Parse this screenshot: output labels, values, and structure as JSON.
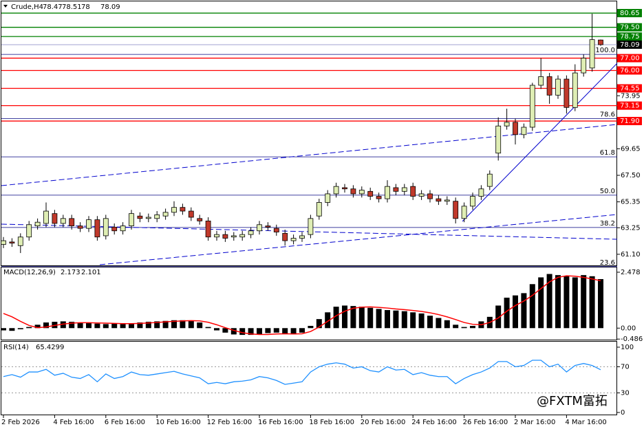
{
  "header": {
    "symbol": "Crude,H4"
  },
  "watermark": "@FXTM富拓",
  "chart_data": [
    {
      "type": "candlestick",
      "categories": [
        "2 Feb 2026",
        null,
        null,
        null,
        null,
        null,
        "4 Feb 16:00",
        null,
        null,
        null,
        null,
        null,
        "6 Feb 16:00",
        null,
        null,
        null,
        null,
        null,
        "10 Feb 16:00",
        null,
        null,
        null,
        null,
        null,
        "12 Feb 16:00",
        null,
        null,
        null,
        null,
        null,
        "16 Feb 16:00",
        null,
        null,
        null,
        null,
        null,
        "18 Feb 16:00",
        null,
        null,
        null,
        null,
        null,
        "20 Feb 16:00",
        null,
        null,
        null,
        null,
        null,
        "24 Feb 16:00",
        null,
        null,
        null,
        null,
        null,
        "26 Feb 16:00",
        null,
        null,
        null,
        null,
        null,
        "2 Mar 16:00",
        null,
        null,
        null,
        null,
        null,
        "4 Mar 16:00",
        null,
        null,
        null,
        null
      ],
      "open": [
        61.9,
        62.1,
        61.8,
        62.5,
        63.4,
        63.6,
        64.4,
        63.6,
        64.0,
        63.4,
        63.2,
        63.9,
        62.6,
        63.3,
        63.0,
        63.4,
        64.2,
        64.0,
        64.0,
        64.2,
        64.5,
        64.9,
        64.6,
        64.0,
        63.8,
        62.5,
        62.7,
        62.5,
        62.5,
        62.7,
        63.0,
        63.4,
        63.2,
        62.8,
        62.2,
        62.4,
        62.7,
        64.2,
        65.3,
        66.0,
        66.5,
        66.4,
        66.0,
        66.2,
        65.8,
        65.6,
        66.5,
        66.2,
        66.6,
        65.8,
        66.0,
        65.6,
        65.4,
        65.4,
        64.0,
        65.0,
        65.8,
        66.6,
        69.3,
        71.5,
        71.8,
        70.8,
        71.4,
        74.8,
        75.5,
        74.0,
        75.3,
        73.0,
        75.8,
        76.2,
        78.47
      ],
      "high": [
        62.5,
        62.4,
        62.8,
        63.8,
        64.0,
        65.3,
        64.7,
        64.3,
        64.3,
        63.7,
        64.2,
        64.2,
        64.3,
        63.6,
        63.7,
        64.7,
        64.5,
        64.4,
        64.6,
        64.8,
        65.4,
        65.2,
        64.9,
        64.3,
        64.1,
        63.0,
        63.0,
        62.9,
        63.0,
        63.3,
        63.8,
        63.7,
        63.5,
        63.1,
        62.7,
        62.9,
        64.3,
        65.6,
        66.3,
        66.9,
        66.8,
        66.7,
        66.6,
        66.5,
        66.1,
        67.1,
        66.8,
        66.8,
        66.9,
        66.3,
        66.3,
        65.9,
        65.8,
        65.7,
        65.3,
        66.1,
        66.7,
        67.9,
        72.2,
        72.9,
        72.1,
        71.7,
        75.0,
        77.0,
        75.8,
        75.6,
        75.6,
        76.5,
        77.3,
        80.6,
        78.51
      ],
      "low": [
        61.6,
        61.7,
        61.2,
        62.2,
        63.1,
        63.3,
        63.3,
        63.3,
        63.1,
        62.9,
        62.9,
        62.2,
        62.3,
        62.7,
        62.7,
        63.1,
        63.7,
        63.7,
        63.7,
        63.9,
        64.2,
        64.3,
        63.8,
        63.5,
        62.2,
        62.2,
        62.1,
        62.2,
        62.2,
        62.4,
        62.7,
        63.0,
        62.6,
        61.8,
        61.9,
        62.1,
        62.4,
        63.9,
        65.0,
        65.7,
        66.1,
        65.7,
        65.7,
        65.5,
        65.3,
        65.3,
        65.9,
        65.9,
        65.5,
        65.5,
        65.3,
        65.1,
        65.1,
        63.6,
        63.7,
        64.7,
        65.5,
        66.3,
        68.7,
        71.2,
        70.0,
        70.5,
        71.1,
        74.5,
        73.3,
        73.7,
        72.5,
        72.7,
        75.5,
        75.9,
        78.0
      ],
      "close": [
        62.2,
        62.0,
        62.5,
        63.5,
        63.7,
        64.6,
        63.6,
        64.0,
        63.4,
        63.2,
        63.9,
        62.5,
        64.0,
        63.0,
        63.4,
        64.4,
        64.0,
        64.1,
        64.3,
        64.5,
        64.9,
        64.6,
        64.1,
        63.8,
        62.5,
        62.7,
        62.4,
        62.6,
        62.7,
        63.0,
        63.5,
        63.3,
        62.9,
        62.2,
        62.4,
        62.6,
        64.0,
        65.3,
        66.0,
        66.6,
        66.4,
        66.0,
        66.3,
        65.8,
        65.6,
        66.6,
        66.2,
        66.5,
        65.8,
        66.0,
        65.6,
        65.4,
        65.5,
        64.0,
        65.0,
        65.8,
        66.4,
        67.6,
        71.5,
        71.8,
        70.8,
        71.4,
        74.8,
        75.5,
        74.0,
        75.3,
        73.0,
        75.8,
        77.0,
        78.5,
        78.09
      ],
      "bull_color": "#dfeeb4",
      "bear_color": "#c0392b",
      "ylim": [
        60.2,
        81.6
      ],
      "yticks": [
        73.95,
        69.65,
        {
          "value": 67.5,
          "label": "67.50"
        },
        65.35,
        63.25,
        {
          "value": 61.1,
          "label": "61.10"
        }
      ],
      "levels": [
        {
          "value": 80.65,
          "label": "80.65",
          "color": "#008000"
        },
        {
          "value": 79.5,
          "label": "79.50",
          "color": "#008000"
        },
        {
          "value": 78.75,
          "label": "78.75",
          "color": "#008000"
        },
        {
          "value": 77.0,
          "label": "77.00",
          "color": "#ff0000"
        },
        {
          "value": 76.0,
          "label": "76.00",
          "color": "#ff0000"
        },
        {
          "value": 74.55,
          "label": "74.55",
          "color": "#ff0000"
        },
        {
          "value": 73.15,
          "label": "73.15",
          "color": "#ff0000"
        },
        {
          "value": 71.9,
          "label": "71.90",
          "color": "#ff0000"
        }
      ],
      "fib": [
        {
          "value": 77.3,
          "label": "100.0"
        },
        {
          "value": 72.1,
          "label": "78.6"
        },
        {
          "value": 69.0,
          "label": "61.8"
        },
        {
          "value": 65.89,
          "label": "50.0"
        },
        {
          "value": 63.27,
          "label": "38.2"
        },
        {
          "value": 60.1,
          "label": "23.6"
        }
      ],
      "fib_color": "#000080"
    },
    {
      "type": "macd",
      "title": "MACD(12,26,9)",
      "histogram": [
        -0.1,
        -0.12,
        -0.05,
        0.05,
        0.15,
        0.25,
        0.28,
        0.3,
        0.28,
        0.25,
        0.22,
        0.2,
        0.18,
        0.2,
        0.18,
        0.2,
        0.25,
        0.28,
        0.3,
        0.32,
        0.35,
        0.35,
        0.33,
        0.25,
        0.05,
        -0.1,
        -0.2,
        -0.28,
        -0.3,
        -0.3,
        -0.28,
        -0.22,
        -0.2,
        -0.25,
        -0.28,
        -0.2,
        0.1,
        0.4,
        0.7,
        0.95,
        1.0,
        0.98,
        0.95,
        0.9,
        0.85,
        0.8,
        0.78,
        0.75,
        0.7,
        0.65,
        0.55,
        0.45,
        0.35,
        0.15,
        0.05,
        0.1,
        0.3,
        0.5,
        1.0,
        1.35,
        1.45,
        1.55,
        1.95,
        2.25,
        2.4,
        2.35,
        2.3,
        2.25,
        2.35,
        2.3,
        2.173
      ],
      "histogram_color": "#000000",
      "signal": [
        0.65,
        0.5,
        0.3,
        0.12,
        0.02,
        0.05,
        0.12,
        0.18,
        0.22,
        0.24,
        0.24,
        0.23,
        0.22,
        0.21,
        0.2,
        0.2,
        0.21,
        0.23,
        0.25,
        0.28,
        0.3,
        0.32,
        0.33,
        0.32,
        0.26,
        0.15,
        0.02,
        -0.1,
        -0.2,
        -0.26,
        -0.28,
        -0.28,
        -0.26,
        -0.25,
        -0.26,
        -0.25,
        -0.15,
        0.05,
        0.3,
        0.55,
        0.75,
        0.88,
        0.93,
        0.94,
        0.92,
        0.89,
        0.85,
        0.82,
        0.78,
        0.74,
        0.68,
        0.6,
        0.5,
        0.38,
        0.25,
        0.17,
        0.15,
        0.25,
        0.45,
        0.75,
        1.0,
        1.2,
        1.45,
        1.75,
        2.05,
        2.25,
        2.32,
        2.3,
        2.25,
        2.18,
        2.101
      ],
      "signal_color": "#ff0000",
      "ylim": [
        -0.51,
        2.69
      ],
      "yticks": [
        2.478,
        {
          "value": 0,
          "label": "0.00"
        },
        -0.486
      ]
    },
    {
      "type": "line",
      "title": "RSI(14)",
      "values": [
        55,
        58,
        54,
        62,
        62,
        66,
        57,
        60,
        54,
        52,
        58,
        47,
        59,
        52,
        55,
        62,
        58,
        57,
        59,
        61,
        63,
        59,
        56,
        53,
        44,
        46,
        44,
        47,
        48,
        50,
        55,
        53,
        49,
        43,
        45,
        47,
        62,
        70,
        74,
        76,
        74,
        68,
        70,
        64,
        62,
        70,
        65,
        66,
        58,
        61,
        57,
        55,
        55,
        44,
        52,
        58,
        62,
        68,
        78,
        78,
        70,
        72,
        80,
        80,
        70,
        74,
        62,
        72,
        75,
        72,
        65.4299
      ],
      "color": "#1e90ff",
      "ylim": [
        -3.2,
        108.4
      ],
      "yticks": [
        100,
        70,
        30,
        0
      ],
      "levels": [
        70,
        30
      ]
    }
  ]
}
